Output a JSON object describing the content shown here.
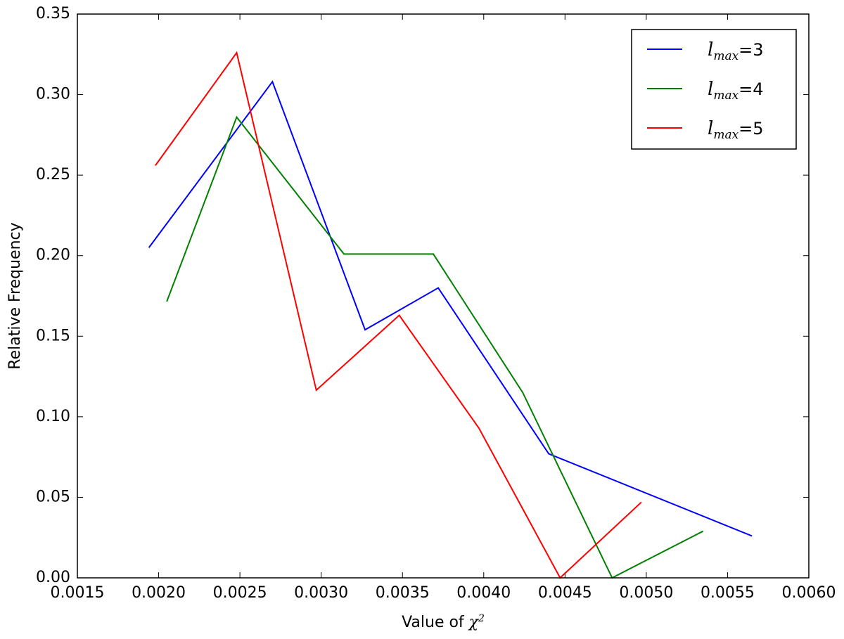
{
  "chart_data": {
    "type": "line",
    "xlabel": "Value of χ2",
    "ylabel": "Relative Frequency",
    "xlim": [
      0.0015,
      0.006
    ],
    "ylim": [
      0,
      0.35
    ],
    "xticks": [
      {
        "value": 0.0015,
        "label": "0.0015"
      },
      {
        "value": 0.002,
        "label": "0.0020"
      },
      {
        "value": 0.0025,
        "label": "0.0025"
      },
      {
        "value": 0.003,
        "label": "0.0030"
      },
      {
        "value": 0.0035,
        "label": "0.0035"
      },
      {
        "value": 0.004,
        "label": "0.0040"
      },
      {
        "value": 0.0045,
        "label": "0.0045"
      },
      {
        "value": 0.005,
        "label": "0.0050"
      },
      {
        "value": 0.0055,
        "label": "0.0055"
      },
      {
        "value": 0.006,
        "label": "0.0060"
      }
    ],
    "yticks": [
      {
        "value": 0,
        "label": "0.00"
      },
      {
        "value": 0.05,
        "label": "0.05"
      },
      {
        "value": 0.1,
        "label": "0.10"
      },
      {
        "value": 0.15,
        "label": "0.15"
      },
      {
        "value": 0.2,
        "label": "0.20"
      },
      {
        "value": 0.25,
        "label": "0.25"
      },
      {
        "value": 0.3,
        "label": "0.30"
      },
      {
        "value": 0.35,
        "label": "0.35"
      }
    ],
    "legend": "upper right",
    "series": [
      {
        "name": "lmax=3",
        "color": "#0000ff",
        "x": [
          0.00194,
          0.0027,
          0.00327,
          0.00372,
          0.0044,
          0.00565
        ],
        "values": [
          0.205,
          0.308,
          0.154,
          0.18,
          0.077,
          0.026
        ]
      },
      {
        "name": "lmax=4",
        "color": "#008000",
        "x": [
          0.00205,
          0.00248,
          0.00314,
          0.00369,
          0.00424,
          0.00479,
          0.00535
        ],
        "values": [
          0.1715,
          0.286,
          0.201,
          0.201,
          0.115,
          0,
          0.029
        ]
      },
      {
        "name": "lmax=5",
        "color": "#ff0000",
        "x": [
          0.00198,
          0.00248,
          0.00297,
          0.00348,
          0.00397,
          0.00447,
          0.00497
        ],
        "values": [
          0.256,
          0.326,
          0.1165,
          0.163,
          0.093,
          0,
          0.047
        ]
      }
    ]
  }
}
